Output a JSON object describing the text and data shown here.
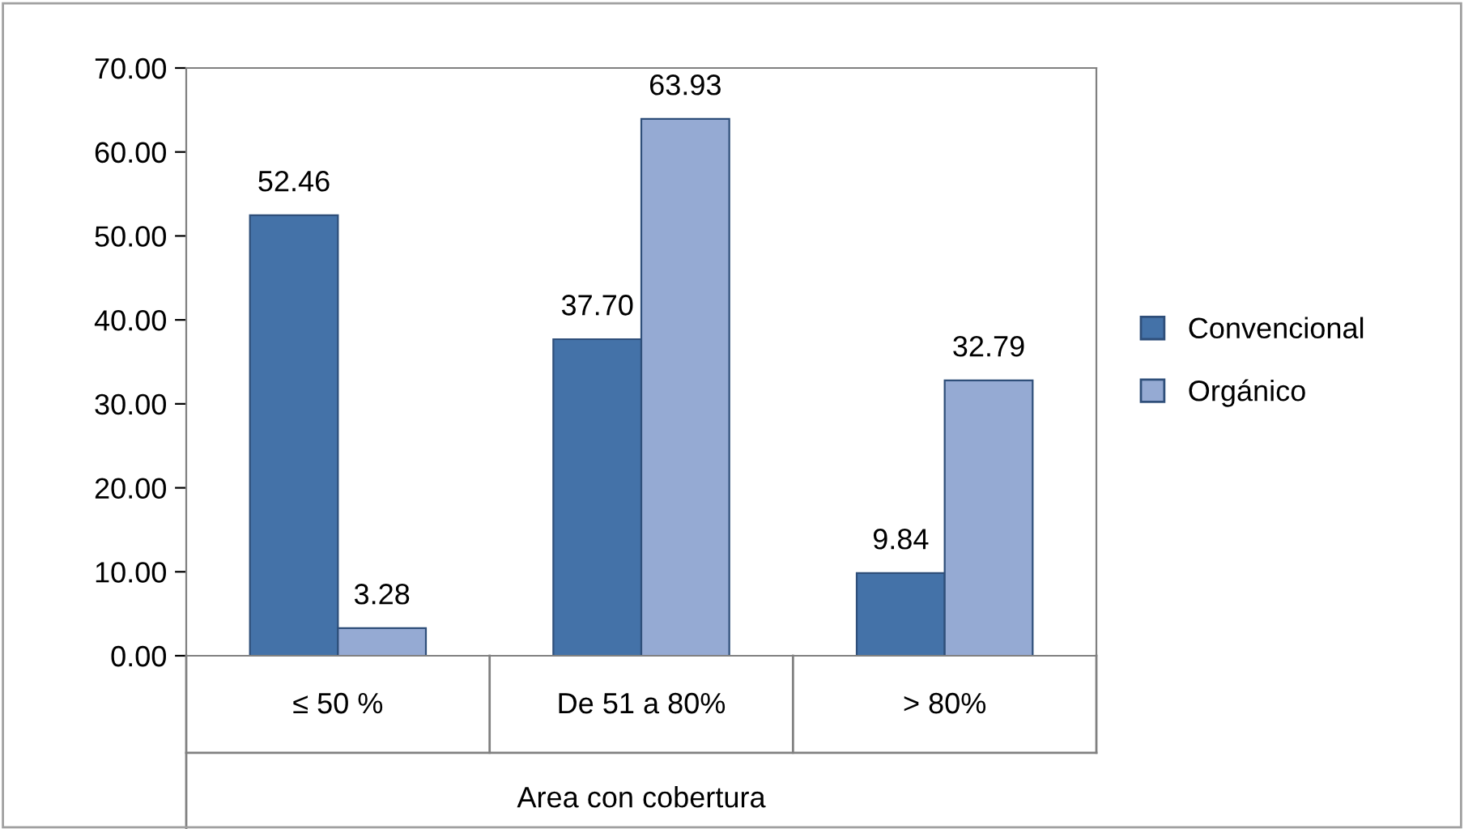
{
  "chart_data": {
    "type": "bar",
    "xlabel": "Area con cobertura",
    "categories": [
      "≤ 50 %",
      "De 51 a 80%",
      "> 80%"
    ],
    "series": [
      {
        "name": "Convencional",
        "color": "#4472a8",
        "values": [
          52.46,
          37.7,
          9.84
        ],
        "value_labels": [
          "52.46",
          "37.70",
          "9.84"
        ]
      },
      {
        "name": "Orgánico",
        "color": "#95aad3",
        "values": [
          3.28,
          63.93,
          32.79
        ],
        "value_labels": [
          "3.28",
          "63.93",
          "32.79"
        ]
      }
    ],
    "ylim": [
      0,
      70
    ],
    "yticks": [
      {
        "value": 0,
        "label": "0.00"
      },
      {
        "value": 10,
        "label": "10.00"
      },
      {
        "value": 20,
        "label": "20.00"
      },
      {
        "value": 30,
        "label": "30.00"
      },
      {
        "value": 40,
        "label": "40.00"
      },
      {
        "value": 50,
        "label": "50.00"
      },
      {
        "value": 60,
        "label": "60.00"
      },
      {
        "value": 70,
        "label": "70.00"
      }
    ],
    "grid": false,
    "legend": "right"
  }
}
